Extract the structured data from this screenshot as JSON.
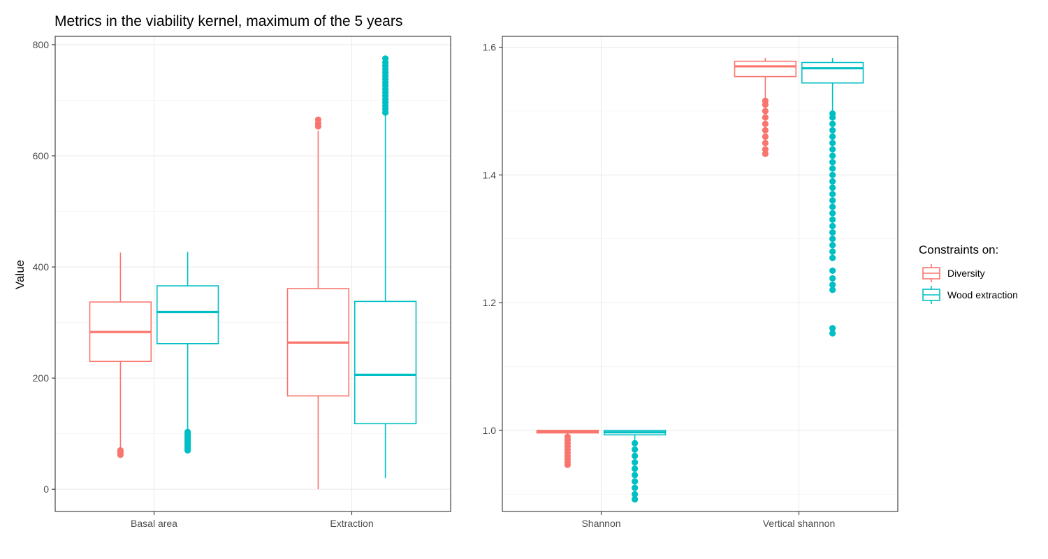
{
  "chart_data": {
    "type": "boxplot",
    "title": "Metrics in the viability kernel, maximum of the 5 years",
    "ylabel": "Value",
    "legend": {
      "title": "Constraints on:",
      "position": "right",
      "entries": [
        {
          "name": "Diversity",
          "color": "#F8766D"
        },
        {
          "name": "Wood extraction",
          "color": "#00BFC4"
        }
      ]
    },
    "grid": true,
    "panels": [
      {
        "ylim": [
          -40,
          815
        ],
        "yticks": [
          0,
          200,
          400,
          600,
          800
        ],
        "yticklabels": [
          "0",
          "200",
          "400",
          "600",
          "800"
        ],
        "categories": [
          "Basal area",
          "Extraction"
        ],
        "series": [
          {
            "name": "Diversity",
            "boxes": [
              {
                "whisker_low": 70,
                "q1": 230,
                "median": 283,
                "q3": 337,
                "whisker_high": 426,
                "outliers": [
                  62,
                  66,
                  70
                ]
              },
              {
                "whisker_low": 0,
                "q1": 168,
                "median": 264,
                "q3": 361,
                "whisker_high": 645,
                "outliers": [
                  653,
                  658,
                  665
                ]
              }
            ]
          },
          {
            "name": "Wood extraction",
            "boxes": [
              {
                "whisker_low": 104,
                "q1": 262,
                "median": 319,
                "q3": 366,
                "whisker_high": 427,
                "outliers": [
                  70,
                  73,
                  76,
                  79,
                  82,
                  85,
                  88,
                  91,
                  94,
                  97,
                  100,
                  103
                ]
              },
              {
                "whisker_low": 20,
                "q1": 118,
                "median": 206,
                "q3": 338,
                "whisker_high": 675,
                "outliers": [
                  678,
                  684,
                  690,
                  696,
                  702,
                  708,
                  714,
                  720,
                  726,
                  732,
                  738,
                  744,
                  750,
                  756,
                  762,
                  768,
                  775
                ]
              }
            ]
          }
        ]
      },
      {
        "ylim": [
          0.873,
          1.617
        ],
        "yticks": [
          1.0,
          1.2,
          1.4,
          1.6
        ],
        "yticklabels": [
          "1.0",
          "1.2",
          "1.4",
          "1.6"
        ],
        "categories": [
          "Shannon",
          "Vertical shannon"
        ],
        "series": [
          {
            "name": "Diversity",
            "boxes": [
              {
                "whisker_low": 0.992,
                "q1": 0.996,
                "median": 0.998,
                "q3": 1.0,
                "whisker_high": 1.0,
                "outliers": [
                  0.946,
                  0.95,
                  0.955,
                  0.96,
                  0.965,
                  0.97,
                  0.975,
                  0.98,
                  0.985,
                  0.99
                ]
              },
              {
                "whisker_low": 1.52,
                "q1": 1.554,
                "median": 1.57,
                "q3": 1.578,
                "whisker_high": 1.583,
                "outliers": [
                  1.433,
                  1.44,
                  1.45,
                  1.46,
                  1.47,
                  1.48,
                  1.49,
                  1.5,
                  1.51,
                  1.516
                ]
              }
            ]
          },
          {
            "name": "Wood extraction",
            "boxes": [
              {
                "whisker_low": 0.985,
                "q1": 0.993,
                "median": 0.997,
                "q3": 1.0,
                "whisker_high": 1.0,
                "outliers": [
                  0.892,
                  0.9,
                  0.91,
                  0.92,
                  0.93,
                  0.94,
                  0.95,
                  0.96,
                  0.97,
                  0.98
                ]
              },
              {
                "whisker_low": 1.5,
                "q1": 1.544,
                "median": 1.567,
                "q3": 1.576,
                "whisker_high": 1.583,
                "outliers": [
                  1.152,
                  1.16,
                  1.22,
                  1.228,
                  1.238,
                  1.25,
                  1.27,
                  1.28,
                  1.29,
                  1.3,
                  1.31,
                  1.32,
                  1.33,
                  1.34,
                  1.35,
                  1.36,
                  1.37,
                  1.38,
                  1.39,
                  1.4,
                  1.41,
                  1.42,
                  1.43,
                  1.44,
                  1.45,
                  1.46,
                  1.47,
                  1.48,
                  1.49,
                  1.496
                ]
              }
            ]
          }
        ]
      }
    ]
  }
}
